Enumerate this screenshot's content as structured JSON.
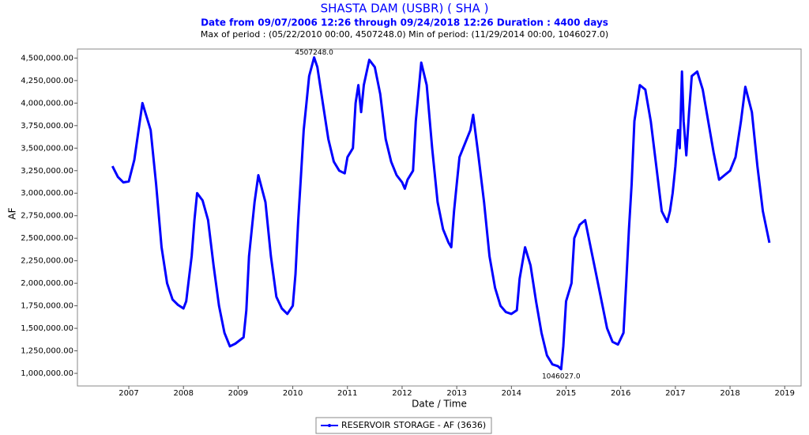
{
  "chart_data": {
    "type": "line",
    "title": "SHASTA DAM  (USBR) ( SHA )",
    "subtitle": "Date from 09/07/2006 12:26 through 09/24/2018 12:26 Duration : 4400 days",
    "period_note": "Max of period : (05/22/2010 00:00, 4507248.0)  Min of period: (11/29/2014 00:00,  1046027.0)",
    "x_label": "Date / Time",
    "y_label": "AF",
    "xlim": [
      2006.06,
      2019.3
    ],
    "xticks": [
      2007,
      2008,
      2009,
      2010,
      2011,
      2012,
      2013,
      2014,
      2015,
      2016,
      2017,
      2018,
      2019
    ],
    "ylim": [
      860000,
      4600000
    ],
    "yticks": [
      {
        "value": 1000000,
        "label": "1,000,000.00"
      },
      {
        "value": 1250000,
        "label": "1,250,000.00"
      },
      {
        "value": 1500000,
        "label": "1,500,000.00"
      },
      {
        "value": 1750000,
        "label": "1,750,000.00"
      },
      {
        "value": 2000000,
        "label": "2,000,000.00"
      },
      {
        "value": 2250000,
        "label": "2,250,000.00"
      },
      {
        "value": 2500000,
        "label": "2,500,000.00"
      },
      {
        "value": 2750000,
        "label": "2,750,000.00"
      },
      {
        "value": 3000000,
        "label": "3,000,000.00"
      },
      {
        "value": 3250000,
        "label": "3,250,000.00"
      },
      {
        "value": 3500000,
        "label": "3,500,000.00"
      },
      {
        "value": 3750000,
        "label": "3,750,000.00"
      },
      {
        "value": 4000000,
        "label": "4,000,000.00"
      },
      {
        "value": 4250000,
        "label": "4,250,000.00"
      },
      {
        "value": 4500000,
        "label": "4,500,000.00"
      }
    ],
    "x": [
      2006.7,
      2006.8,
      2006.9,
      2007.0,
      2007.1,
      2007.25,
      2007.4,
      2007.5,
      2007.6,
      2007.7,
      2007.8,
      2007.9,
      2008.0,
      2008.05,
      2008.1,
      2008.15,
      2008.2,
      2008.25,
      2008.35,
      2008.45,
      2008.55,
      2008.65,
      2008.75,
      2008.85,
      2008.95,
      2009.1,
      2009.15,
      2009.2,
      2009.3,
      2009.37,
      2009.5,
      2009.6,
      2009.7,
      2009.8,
      2009.9,
      2010.0,
      2010.05,
      2010.1,
      2010.15,
      2010.2,
      2010.25,
      2010.3,
      2010.39,
      2010.45,
      2010.55,
      2010.65,
      2010.75,
      2010.85,
      2010.95,
      2011.0,
      2011.1,
      2011.15,
      2011.2,
      2011.25,
      2011.3,
      2011.4,
      2011.5,
      2011.6,
      2011.7,
      2011.8,
      2011.9,
      2012.0,
      2012.05,
      2012.1,
      2012.2,
      2012.25,
      2012.35,
      2012.45,
      2012.55,
      2012.65,
      2012.75,
      2012.85,
      2012.9,
      2012.95,
      2013.0,
      2013.05,
      2013.15,
      2013.25,
      2013.3,
      2013.4,
      2013.5,
      2013.6,
      2013.7,
      2013.8,
      2013.9,
      2014.0,
      2014.1,
      2014.15,
      2014.25,
      2014.35,
      2014.45,
      2014.55,
      2014.65,
      2014.75,
      2014.85,
      2014.91,
      2014.95,
      2015.0,
      2015.1,
      2015.15,
      2015.25,
      2015.35,
      2015.45,
      2015.55,
      2015.65,
      2015.75,
      2015.85,
      2015.95,
      2016.05,
      2016.1,
      2016.15,
      2016.2,
      2016.25,
      2016.35,
      2016.45,
      2016.55,
      2016.65,
      2016.75,
      2016.85,
      2016.9,
      2016.95,
      2017.0,
      2017.05,
      2017.08,
      2017.12,
      2017.15,
      2017.2,
      2017.25,
      2017.3,
      2017.4,
      2017.5,
      2017.6,
      2017.7,
      2017.8,
      2017.9,
      2018.0,
      2018.1,
      2018.2,
      2018.28,
      2018.4,
      2018.5,
      2018.6,
      2018.72
    ],
    "series": [
      {
        "name": "RESERVOIR STORAGE - AF (3636)",
        "color": "#0000ff",
        "values": [
          3300000,
          3180000,
          3120000,
          3130000,
          3370000,
          4000000,
          3700000,
          3100000,
          2400000,
          2000000,
          1820000,
          1760000,
          1720000,
          1800000,
          2050000,
          2300000,
          2700000,
          3000000,
          2920000,
          2700000,
          2200000,
          1750000,
          1450000,
          1300000,
          1330000,
          1400000,
          1700000,
          2300000,
          2900000,
          3200000,
          2900000,
          2300000,
          1850000,
          1720000,
          1660000,
          1750000,
          2100000,
          2700000,
          3200000,
          3700000,
          4000000,
          4300000,
          4507248,
          4400000,
          4000000,
          3600000,
          3350000,
          3250000,
          3220000,
          3400000,
          3500000,
          4000000,
          4200000,
          3900000,
          4200000,
          4480000,
          4400000,
          4100000,
          3600000,
          3350000,
          3200000,
          3120000,
          3050000,
          3150000,
          3250000,
          3800000,
          4450000,
          4200000,
          3500000,
          2900000,
          2600000,
          2450000,
          2400000,
          2800000,
          3100000,
          3400000,
          3550000,
          3700000,
          3870000,
          3400000,
          2900000,
          2300000,
          1950000,
          1750000,
          1680000,
          1660000,
          1700000,
          2050000,
          2400000,
          2200000,
          1800000,
          1450000,
          1200000,
          1100000,
          1080000,
          1046027,
          1300000,
          1800000,
          2000000,
          2500000,
          2650000,
          2700000,
          2400000,
          2100000,
          1800000,
          1500000,
          1350000,
          1320000,
          1450000,
          2000000,
          2600000,
          3100000,
          3800000,
          4200000,
          4150000,
          3800000,
          3300000,
          2800000,
          2680000,
          2800000,
          3000000,
          3300000,
          3700000,
          3500000,
          4350000,
          3800000,
          3420000,
          3900000,
          4300000,
          4350000,
          4150000,
          3800000,
          3450000,
          3150000,
          3200000,
          3250000,
          3400000,
          3800000,
          4180000,
          3900000,
          3300000,
          2800000,
          2450000
        ]
      }
    ],
    "annotations": [
      {
        "text": "4507248.0",
        "x": 2010.39,
        "y": 4507248
      },
      {
        "text": "1046027.0",
        "x": 2014.91,
        "y": 1046027
      }
    ],
    "grid": false
  }
}
